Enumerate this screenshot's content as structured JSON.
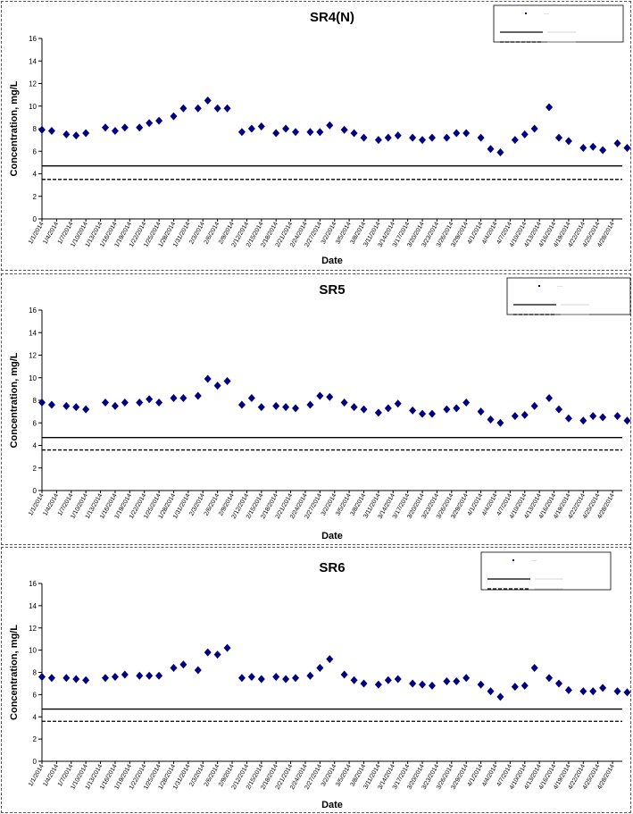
{
  "chart_data": [
    {
      "type": "scatter",
      "title": "SR4(N)",
      "xlabel": "Date",
      "ylabel": "Concentration, mg/L",
      "ylim": [
        0,
        16
      ],
      "yticks": [
        "0",
        "2",
        "4",
        "6",
        "8",
        "10",
        "12",
        "14",
        "16"
      ],
      "xlim": [
        "1/1/2014",
        "4/30/2014"
      ],
      "xtick_labels": [
        "1/1/2014",
        "1/4/2014",
        "1/7/2014",
        "1/10/2014",
        "1/13/2014",
        "1/16/2014",
        "1/19/2014",
        "1/22/2014",
        "1/25/2014",
        "1/28/2014",
        "1/31/2014",
        "2/3/2014",
        "2/6/2014",
        "2/9/2014",
        "2/12/2014",
        "2/15/2014",
        "2/18/2014",
        "2/21/2014",
        "2/24/2014",
        "2/27/2014",
        "3/2/2014",
        "3/5/2014",
        "3/8/2014",
        "3/11/2014",
        "3/14/2014",
        "3/17/2014",
        "3/20/2014",
        "3/23/2014",
        "3/26/2014",
        "3/29/2014",
        "4/1/2014",
        "4/4/2014",
        "4/7/2014",
        "4/10/2014",
        "4/13/2014",
        "4/16/2014",
        "4/19/2014",
        "4/22/2014",
        "4/25/2014",
        "4/28/2014"
      ],
      "grid": false,
      "legend": "top-right",
      "series": [
        {
          "type": "scatter",
          "marker": "diamond",
          "color": "#000080",
          "x": [
            "1/1/2014",
            "1/3/2014",
            "1/6/2014",
            "1/8/2014",
            "1/10/2014",
            "1/14/2014",
            "1/16/2014",
            "1/18/2014",
            "1/21/2014",
            "1/23/2014",
            "1/25/2014",
            "1/28/2014",
            "1/30/2014",
            "2/2/2014",
            "2/4/2014",
            "2/6/2014",
            "2/8/2014",
            "2/11/2014",
            "2/13/2014",
            "2/15/2014",
            "2/18/2014",
            "2/20/2014",
            "2/22/2014",
            "2/25/2014",
            "2/27/2014",
            "3/1/2014",
            "3/4/2014",
            "3/6/2014",
            "3/8/2014",
            "3/11/2014",
            "3/13/2014",
            "3/15/2014",
            "3/18/2014",
            "3/20/2014",
            "3/22/2014",
            "3/25/2014",
            "3/27/2014",
            "3/29/2014",
            "4/1/2014",
            "4/3/2014",
            "4/5/2014",
            "4/8/2014",
            "4/10/2014",
            "4/12/2014",
            "4/15/2014",
            "4/17/2014",
            "4/19/2014",
            "4/22/2014",
            "4/24/2014",
            "4/26/2014",
            "4/29/2014",
            "5/1/2014"
          ],
          "y": [
            7.9,
            7.8,
            7.5,
            7.4,
            7.6,
            8.1,
            7.8,
            8.1,
            8.1,
            8.5,
            8.7,
            9.1,
            9.8,
            9.8,
            10.5,
            9.8,
            9.8,
            7.7,
            8.0,
            8.2,
            7.6,
            8.0,
            7.7,
            7.7,
            7.7,
            8.3,
            7.9,
            7.6,
            7.2,
            7.0,
            7.2,
            7.4,
            7.2,
            7.0,
            7.2,
            7.2,
            7.6,
            7.6,
            7.2,
            6.2,
            5.9,
            7.0,
            7.5,
            8.0,
            9.9,
            7.2,
            6.9,
            6.3,
            6.4,
            6.1,
            6.7,
            6.3
          ]
        },
        {
          "type": "hline",
          "style": "solid",
          "color": "#000000",
          "y": 4.7
        },
        {
          "type": "hline",
          "style": "dashed",
          "color": "#000000",
          "y": 3.5
        }
      ]
    },
    {
      "type": "scatter",
      "title": "SR5",
      "xlabel": "Date",
      "ylabel": "Concentration, mg/L",
      "ylim": [
        0,
        16
      ],
      "yticks": [
        "0",
        "2",
        "4",
        "6",
        "8",
        "10",
        "12",
        "14",
        "16"
      ],
      "xlim": [
        "1/1/2014",
        "4/30/2014"
      ],
      "xtick_labels": [
        "1/1/2014",
        "1/4/2014",
        "1/7/2014",
        "1/10/2014",
        "1/13/2014",
        "1/16/2014",
        "1/19/2014",
        "1/22/2014",
        "1/25/2014",
        "1/28/2014",
        "1/31/2014",
        "2/3/2014",
        "2/6/2014",
        "2/9/2014",
        "2/12/2014",
        "2/15/2014",
        "2/18/2014",
        "2/21/2014",
        "2/24/2014",
        "2/27/2014",
        "3/2/2014",
        "3/5/2014",
        "3/8/2014",
        "3/11/2014",
        "3/14/2014",
        "3/17/2014",
        "3/20/2014",
        "3/23/2014",
        "3/26/2014",
        "3/29/2014",
        "4/1/2014",
        "4/4/2014",
        "4/7/2014",
        "4/10/2014",
        "4/13/2014",
        "4/16/2014",
        "4/19/2014",
        "4/22/2014",
        "4/25/2014",
        "4/28/2014"
      ],
      "grid": false,
      "legend": "top-right",
      "series": [
        {
          "type": "scatter",
          "marker": "diamond",
          "color": "#000080",
          "x": [
            "1/1/2014",
            "1/3/2014",
            "1/6/2014",
            "1/8/2014",
            "1/10/2014",
            "1/14/2014",
            "1/16/2014",
            "1/18/2014",
            "1/21/2014",
            "1/23/2014",
            "1/25/2014",
            "1/28/2014",
            "1/30/2014",
            "2/2/2014",
            "2/4/2014",
            "2/6/2014",
            "2/8/2014",
            "2/11/2014",
            "2/13/2014",
            "2/15/2014",
            "2/18/2014",
            "2/20/2014",
            "2/22/2014",
            "2/25/2014",
            "2/27/2014",
            "3/1/2014",
            "3/4/2014",
            "3/6/2014",
            "3/8/2014",
            "3/11/2014",
            "3/13/2014",
            "3/15/2014",
            "3/18/2014",
            "3/20/2014",
            "3/22/2014",
            "3/25/2014",
            "3/27/2014",
            "3/29/2014",
            "4/1/2014",
            "4/3/2014",
            "4/5/2014",
            "4/8/2014",
            "4/10/2014",
            "4/12/2014",
            "4/15/2014",
            "4/17/2014",
            "4/19/2014",
            "4/22/2014",
            "4/24/2014",
            "4/26/2014",
            "4/29/2014",
            "5/1/2014"
          ],
          "y": [
            7.8,
            7.6,
            7.5,
            7.4,
            7.2,
            7.8,
            7.5,
            7.8,
            7.8,
            8.1,
            7.8,
            8.2,
            8.2,
            8.4,
            9.9,
            9.3,
            9.7,
            7.6,
            8.2,
            7.4,
            7.5,
            7.4,
            7.3,
            7.6,
            8.4,
            8.3,
            7.8,
            7.4,
            7.2,
            6.9,
            7.3,
            7.7,
            7.1,
            6.8,
            6.8,
            7.2,
            7.3,
            7.8,
            7.0,
            6.3,
            6.0,
            6.6,
            6.7,
            7.5,
            8.2,
            7.2,
            6.4,
            6.2,
            6.6,
            6.5,
            6.6,
            6.2
          ]
        },
        {
          "type": "hline",
          "style": "solid",
          "color": "#000000",
          "y": 4.7
        },
        {
          "type": "hline",
          "style": "dashed",
          "color": "#000000",
          "y": 3.6
        }
      ]
    },
    {
      "type": "scatter",
      "title": "SR6",
      "xlabel": "Date",
      "ylabel": "Concentration, mg/L",
      "ylim": [
        0,
        16
      ],
      "yticks": [
        "0",
        "2",
        "4",
        "6",
        "8",
        "10",
        "12",
        "14",
        "16"
      ],
      "xlim": [
        "1/1/2014",
        "4/30/2014"
      ],
      "xtick_labels": [
        "1/1/2014",
        "1/4/2014",
        "1/7/2014",
        "1/10/2014",
        "1/13/2014",
        "1/16/2014",
        "1/19/2014",
        "1/22/2014",
        "1/25/2014",
        "1/28/2014",
        "1/31/2014",
        "2/3/2014",
        "2/6/2014",
        "2/9/2014",
        "2/12/2014",
        "2/15/2014",
        "2/18/2014",
        "2/21/2014",
        "2/24/2014",
        "2/27/2014",
        "3/2/2014",
        "3/5/2014",
        "3/8/2014",
        "3/11/2014",
        "3/14/2014",
        "3/17/2014",
        "3/20/2014",
        "3/23/2014",
        "3/26/2014",
        "3/29/2014",
        "4/1/2014",
        "4/4/2014",
        "4/7/2014",
        "4/10/2014",
        "4/13/2014",
        "4/16/2014",
        "4/19/2014",
        "4/22/2014",
        "4/25/2014",
        "4/28/2014"
      ],
      "grid": false,
      "legend": "top-right",
      "series": [
        {
          "type": "scatter",
          "marker": "diamond",
          "color": "#000080",
          "x": [
            "1/1/2014",
            "1/3/2014",
            "1/6/2014",
            "1/8/2014",
            "1/10/2014",
            "1/14/2014",
            "1/16/2014",
            "1/18/2014",
            "1/21/2014",
            "1/23/2014",
            "1/25/2014",
            "1/28/2014",
            "1/30/2014",
            "2/2/2014",
            "2/4/2014",
            "2/6/2014",
            "2/8/2014",
            "2/11/2014",
            "2/13/2014",
            "2/15/2014",
            "2/18/2014",
            "2/20/2014",
            "2/22/2014",
            "2/25/2014",
            "2/27/2014",
            "3/1/2014",
            "3/4/2014",
            "3/6/2014",
            "3/8/2014",
            "3/11/2014",
            "3/13/2014",
            "3/15/2014",
            "3/18/2014",
            "3/20/2014",
            "3/22/2014",
            "3/25/2014",
            "3/27/2014",
            "3/29/2014",
            "4/1/2014",
            "4/3/2014",
            "4/5/2014",
            "4/8/2014",
            "4/10/2014",
            "4/12/2014",
            "4/15/2014",
            "4/17/2014",
            "4/19/2014",
            "4/22/2014",
            "4/24/2014",
            "4/26/2014",
            "4/29/2014",
            "5/1/2014"
          ],
          "y": [
            7.6,
            7.5,
            7.5,
            7.4,
            7.3,
            7.5,
            7.6,
            7.8,
            7.7,
            7.7,
            7.7,
            8.4,
            8.7,
            8.2,
            9.8,
            9.6,
            10.2,
            7.5,
            7.6,
            7.4,
            7.6,
            7.4,
            7.5,
            7.7,
            8.4,
            9.2,
            7.8,
            7.3,
            7.0,
            6.9,
            7.3,
            7.4,
            7.0,
            6.9,
            6.8,
            7.2,
            7.2,
            7.5,
            6.9,
            6.3,
            5.8,
            6.7,
            6.8,
            8.4,
            7.5,
            7.0,
            6.4,
            6.3,
            6.3,
            6.6,
            6.3,
            6.2
          ]
        },
        {
          "type": "hline",
          "style": "solid",
          "color": "#000000",
          "y": 4.7
        },
        {
          "type": "hline",
          "style": "dashed",
          "color": "#000000",
          "y": 3.6
        }
      ]
    }
  ]
}
